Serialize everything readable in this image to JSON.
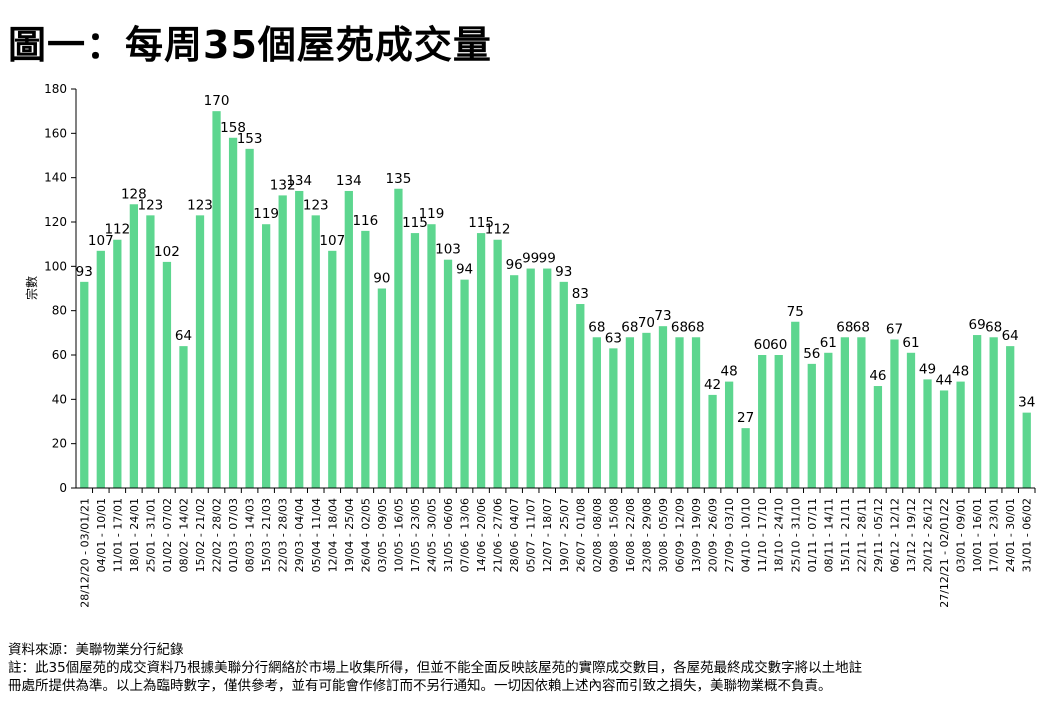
{
  "title": "圖一：每周35個屋苑成交量",
  "source": "資料來源：美聯物業分行紀錄",
  "note_line1": "註：此35個屋苑的成交資料乃根據美聯分行網絡於市場上收集所得，但並不能全面反映該屋苑的實際成交數目，各屋苑最終成交數字將以土地註",
  "note_line2": "冊處所提供為準。以上為臨時數字，僅供參考，並有可能會作修訂而不另行通知。一切因依賴上述內容而引致之損失，美聯物業概不負責。",
  "colors": {
    "bar": "#5DD68F",
    "axis": "#000000"
  },
  "chart_data": {
    "type": "bar",
    "title": "圖一：每周35個屋苑成交量",
    "ylabel": "宗數",
    "xlabel": "",
    "ylim": [
      0,
      180
    ],
    "yticks": [
      0,
      20,
      40,
      60,
      80,
      100,
      120,
      140,
      160,
      180
    ],
    "grid": false,
    "legend": "none",
    "categories": [
      "28/12/20 - 03/01/21",
      "04/01 - 10/01",
      "11/01 - 17/01",
      "18/01 - 24/01",
      "25/01 - 31/01",
      "01/02 - 07/02",
      "08/02 - 14/02",
      "15/02 - 21/02",
      "22/02 - 28/02",
      "01/03 - 07/03",
      "08/03 - 14/03",
      "15/03 - 21/03",
      "22/03 - 28/03",
      "29/03 - 04/04",
      "05/04 - 11/04",
      "12/04 - 18/04",
      "19/04 - 25/04",
      "26/04 - 02/05",
      "03/05 - 09/05",
      "10/05 - 16/05",
      "17/05 - 23/05",
      "24/05 - 30/05",
      "31/05 - 06/06",
      "07/06 - 13/06",
      "14/06 - 20/06",
      "21/06 - 27/06",
      "28/06 - 04/07",
      "05/07 - 11/07",
      "12/07 - 18/07",
      "19/07 - 25/07",
      "26/07 - 01/08",
      "02/08 - 08/08",
      "09/08 - 15/08",
      "16/08 - 22/08",
      "23/08 - 29/08",
      "30/08 - 05/09",
      "06/09 - 12/09",
      "13/09 - 19/09",
      "20/09 - 26/09",
      "27/09 - 03/10",
      "04/10 - 10/10",
      "11/10 - 17/10",
      "18/10 - 24/10",
      "25/10 - 31/10",
      "01/11 - 07/11",
      "08/11 - 14/11",
      "15/11 - 21/11",
      "22/11 - 28/11",
      "29/11 - 05/12",
      "06/12 - 12/12",
      "13/12 - 19/12",
      "20/12 - 26/12",
      "27/12/21 - 02/01/22",
      "03/01 - 09/01",
      "10/01 - 16/01",
      "17/01 - 23/01",
      "24/01 - 30/01",
      "31/01 - 06/02"
    ],
    "values": [
      93,
      107,
      112,
      128,
      123,
      102,
      64,
      123,
      170,
      158,
      153,
      119,
      132,
      134,
      123,
      107,
      134,
      116,
      90,
      135,
      115,
      119,
      103,
      94,
      115,
      112,
      96,
      99,
      99,
      93,
      83,
      68,
      63,
      68,
      70,
      73,
      68,
      68,
      42,
      48,
      27,
      60,
      60,
      75,
      56,
      61,
      68,
      68,
      46,
      67,
      61,
      49,
      44,
      48,
      69,
      68,
      64,
      34
    ]
  }
}
